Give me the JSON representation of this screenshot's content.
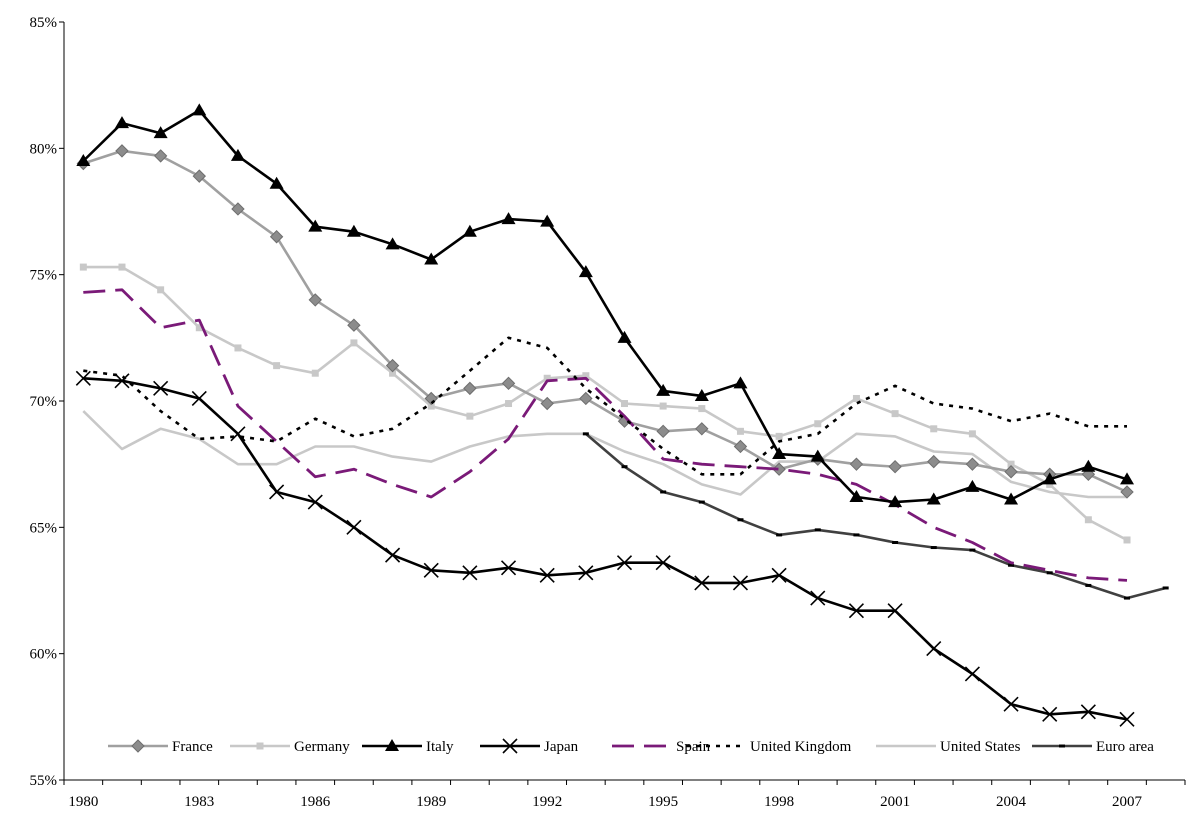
{
  "chart_data": {
    "type": "line",
    "title": "",
    "xlabel": "",
    "ylabel": "",
    "x": [
      1980,
      1981,
      1982,
      1983,
      1984,
      1985,
      1986,
      1987,
      1988,
      1989,
      1990,
      1991,
      1992,
      1993,
      1994,
      1995,
      1996,
      1997,
      1998,
      1999,
      2000,
      2001,
      2002,
      2003,
      2004,
      2005,
      2006,
      2007,
      2008
    ],
    "xlim": [
      1979.5,
      2008.5
    ],
    "ylim": [
      0.55,
      0.85
    ],
    "y_ticks": [
      0.55,
      0.6,
      0.65,
      0.7,
      0.75,
      0.8,
      0.85
    ],
    "y_tick_labels": [
      "55%",
      "60%",
      "65%",
      "70%",
      "75%",
      "80%",
      "85%"
    ],
    "x_tick_labels": [
      "1980",
      "1983",
      "1986",
      "1989",
      "1992",
      "1995",
      "1998",
      "2001",
      "2004",
      "2007"
    ],
    "grid": false,
    "legend_position": "bottom",
    "series": [
      {
        "name": "France",
        "color": "#a0a0a0",
        "marker": "diamond",
        "dash": "solid",
        "values": [
          0.794,
          0.799,
          0.797,
          0.789,
          0.776,
          0.765,
          0.74,
          0.73,
          0.714,
          0.701,
          0.705,
          0.707,
          0.699,
          0.701,
          0.692,
          0.688,
          0.689,
          0.682,
          0.673,
          0.677,
          0.675,
          0.674,
          0.676,
          0.675,
          0.672,
          0.671,
          0.671,
          0.664,
          null
        ]
      },
      {
        "name": "Germany",
        "color": "#c8c8c8",
        "marker": "square",
        "dash": "solid",
        "values": [
          0.753,
          0.753,
          0.744,
          0.729,
          0.721,
          0.714,
          0.711,
          0.723,
          0.711,
          0.698,
          0.694,
          0.699,
          0.709,
          0.71,
          0.699,
          0.698,
          0.697,
          0.688,
          0.686,
          0.691,
          0.701,
          0.695,
          0.689,
          0.687,
          0.675,
          0.667,
          0.653,
          0.645,
          null
        ]
      },
      {
        "name": "Italy",
        "color": "#000000",
        "marker": "triangle",
        "dash": "solid",
        "values": [
          0.795,
          0.81,
          0.806,
          0.815,
          0.797,
          0.786,
          0.769,
          0.767,
          0.762,
          0.756,
          0.767,
          0.772,
          0.771,
          0.751,
          0.725,
          0.704,
          0.702,
          0.707,
          0.679,
          0.678,
          0.662,
          0.66,
          0.661,
          0.666,
          0.661,
          0.669,
          0.674,
          0.669,
          null
        ]
      },
      {
        "name": "Japan",
        "color": "#000000",
        "marker": "x",
        "dash": "solid",
        "values": [
          0.709,
          0.708,
          0.705,
          0.701,
          0.687,
          0.664,
          0.66,
          0.65,
          0.639,
          0.633,
          0.632,
          0.634,
          0.631,
          0.632,
          0.636,
          0.636,
          0.628,
          0.628,
          0.631,
          0.622,
          0.617,
          0.617,
          0.602,
          0.592,
          0.58,
          0.576,
          0.577,
          0.574,
          null
        ]
      },
      {
        "name": "Spain",
        "color": "#7a1a78",
        "marker": "none",
        "dash": "long",
        "values": [
          0.743,
          0.744,
          0.729,
          0.732,
          0.698,
          0.684,
          0.67,
          0.673,
          0.667,
          0.662,
          0.672,
          0.685,
          0.708,
          0.709,
          0.694,
          0.677,
          0.675,
          0.674,
          0.673,
          0.671,
          0.667,
          0.659,
          0.65,
          0.644,
          0.636,
          0.633,
          0.63,
          0.629,
          null
        ]
      },
      {
        "name": "United Kingdom",
        "color": "#000000",
        "marker": "none",
        "dash": "dot",
        "values": [
          0.712,
          0.71,
          0.696,
          0.685,
          0.686,
          0.684,
          0.693,
          0.686,
          0.689,
          0.699,
          0.712,
          0.725,
          0.721,
          0.705,
          0.693,
          0.681,
          0.671,
          0.671,
          0.684,
          0.687,
          0.699,
          0.706,
          0.699,
          0.697,
          0.692,
          0.695,
          0.69,
          0.69,
          null
        ]
      },
      {
        "name": "United States",
        "color": "#c8c8c8",
        "marker": "none",
        "dash": "solid",
        "values": [
          0.696,
          0.681,
          0.689,
          0.685,
          0.675,
          0.675,
          0.682,
          0.682,
          0.678,
          0.676,
          0.682,
          0.686,
          0.687,
          0.687,
          0.68,
          0.675,
          0.667,
          0.663,
          0.676,
          0.676,
          0.687,
          0.686,
          0.68,
          0.679,
          0.668,
          0.664,
          0.662,
          0.662,
          null
        ]
      },
      {
        "name": "Euro area",
        "color": "#404040",
        "marker": "dash",
        "dash": "solid",
        "values": [
          null,
          null,
          null,
          null,
          null,
          null,
          null,
          null,
          null,
          null,
          null,
          null,
          null,
          0.687,
          0.674,
          0.664,
          0.66,
          0.653,
          0.647,
          0.649,
          0.647,
          0.644,
          0.642,
          0.641,
          0.635,
          0.632,
          0.627,
          0.622,
          0.626
        ]
      }
    ]
  }
}
